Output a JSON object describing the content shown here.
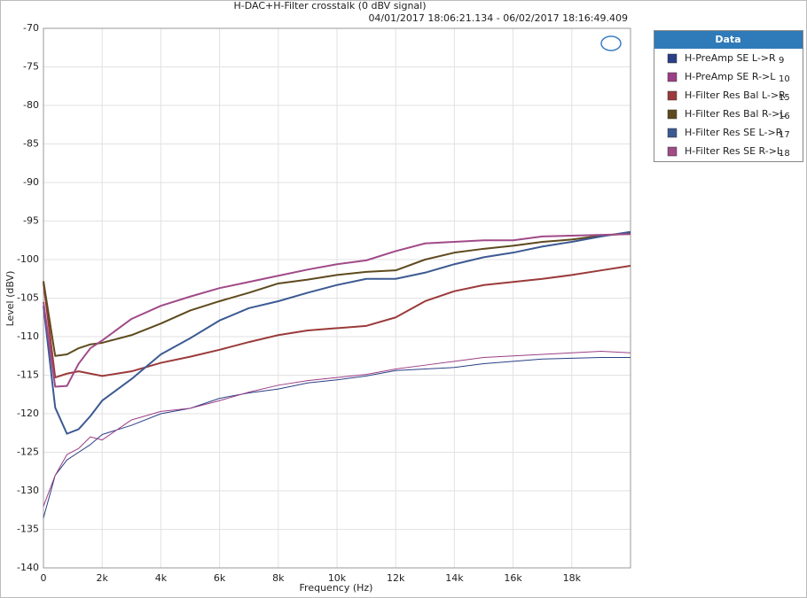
{
  "chart_data": {
    "type": "line",
    "title": "H-DAC+H-Filter crosstalk (0 dBV signal)",
    "subtitle": "04/01/2017 18:06:21.134 - 06/02/2017 18:16:49.409",
    "x_label": "Frequency (Hz)",
    "y_label": "Level (dBV)",
    "legend_title": "Data",
    "legend_position": "right",
    "grid": true,
    "xlim": [
      0,
      20000
    ],
    "xticks": [
      0,
      {
        "value": 2000,
        "label": "2k"
      },
      {
        "value": 4000,
        "label": "4k"
      },
      {
        "value": 6000,
        "label": "6k"
      },
      {
        "value": 8000,
        "label": "8k"
      },
      {
        "value": 10000,
        "label": "10k"
      },
      {
        "value": 12000,
        "label": "12k"
      },
      {
        "value": 14000,
        "label": "14k"
      },
      {
        "value": 16000,
        "label": "16k"
      },
      {
        "value": 18000,
        "label": "18k"
      }
    ],
    "ylim": [
      -140,
      -70
    ],
    "yticks": [
      -70,
      -75,
      -80,
      -85,
      -90,
      -95,
      -100,
      -105,
      -110,
      -115,
      -120,
      -125,
      -130,
      -135,
      -140
    ],
    "x": [
      0,
      400,
      800,
      1200,
      1600,
      2000,
      3000,
      4000,
      5000,
      6000,
      7000,
      8000,
      9000,
      10000,
      11000,
      12000,
      13000,
      14000,
      15000,
      16000,
      17000,
      18000,
      19000,
      20000
    ],
    "series": [
      {
        "name": "H-PreAmp SE L->R",
        "number": 9,
        "color": "#2a3f86",
        "width": 1,
        "values": [
          -133.5,
          -128,
          -126,
          -125,
          -124,
          -122.7,
          -121.5,
          -120,
          -119.3,
          -118,
          -117.3,
          -116.8,
          -116,
          -115.6,
          -115.1,
          -114.4,
          -114.2,
          -114,
          -113.5,
          -113.2,
          -112.9,
          -112.8,
          -112.7,
          -112.7
        ]
      },
      {
        "name": "H-PreAmp SE R->L",
        "number": 10,
        "color": "#9b3f86",
        "width": 1,
        "values": [
          -132,
          -128,
          -125.3,
          -124.5,
          -123,
          -123.4,
          -120.8,
          -119.7,
          -119.3,
          -118.3,
          -117.2,
          -116.3,
          -115.7,
          -115.3,
          -114.9,
          -114.2,
          -113.7,
          -113.2,
          -112.7,
          -112.5,
          -112.3,
          -112.1,
          -111.9,
          -112.1
        ]
      },
      {
        "name": "H-Filter Res Bal L->R",
        "number": 15,
        "color": "#9b3a3a",
        "width": 2,
        "values": [
          -103,
          -115.3,
          -114.8,
          -114.5,
          -114.8,
          -115.1,
          -114.5,
          -113.4,
          -112.6,
          -111.7,
          -110.7,
          -109.8,
          -109.2,
          -108.9,
          -108.6,
          -107.5,
          -105.4,
          -104.1,
          -103.3,
          -102.9,
          -102.5,
          -102,
          -101.4,
          -100.8
        ]
      },
      {
        "name": "H-Filter Res Bal R->L",
        "number": 16,
        "color": "#5e4a1e",
        "width": 2,
        "values": [
          -102.8,
          -112.5,
          -112.3,
          -111.5,
          -111,
          -110.8,
          -109.8,
          -108.3,
          -106.6,
          -105.4,
          -104.3,
          -103.1,
          -102.6,
          -102,
          -101.6,
          -101.4,
          -100,
          -99.1,
          -98.6,
          -98.2,
          -97.7,
          -97.4,
          -96.9,
          -96.6
        ]
      },
      {
        "name": "H-Filter Res SE L->R",
        "number": 17,
        "color": "#3c5a92",
        "width": 2,
        "values": [
          -106,
          -119.2,
          -122.6,
          -122,
          -120.3,
          -118.3,
          -115.5,
          -112.3,
          -110.2,
          -107.9,
          -106.3,
          -105.4,
          -104.3,
          -103.3,
          -102.5,
          -102.5,
          -101.7,
          -100.6,
          -99.7,
          -99.1,
          -98.3,
          -97.7,
          -97,
          -96.4
        ]
      },
      {
        "name": "H-Filter Res SE R->L",
        "number": 18,
        "color": "#a04a88",
        "width": 2,
        "values": [
          -105.5,
          -116.5,
          -116.4,
          -113.5,
          -111.5,
          -110.5,
          -107.7,
          -106,
          -104.8,
          -103.7,
          -102.9,
          -102.1,
          -101.3,
          -100.6,
          -100.1,
          -98.9,
          -97.9,
          -97.7,
          -97.5,
          -97.5,
          -97,
          -96.9,
          -96.8,
          -96.7
        ]
      }
    ]
  }
}
